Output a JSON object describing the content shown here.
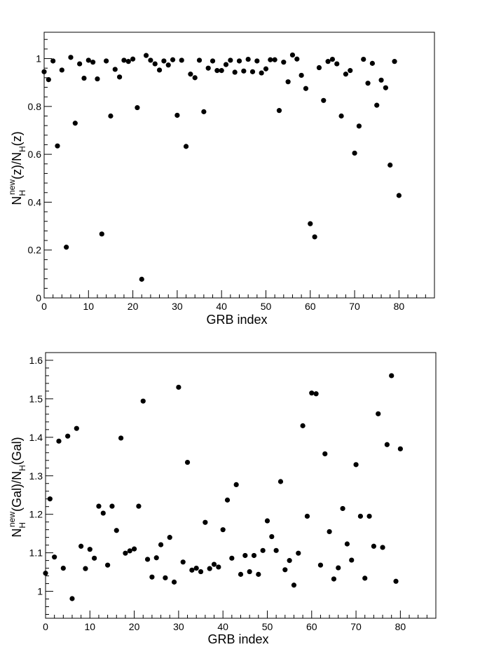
{
  "chart_data": [
    {
      "type": "scatter",
      "xlabel": "GRB index",
      "ylabel": {
        "base": "N",
        "sub1": "H",
        "sup": "new",
        "mid": "(z)/N",
        "sub2": "H",
        "tail": "(z)"
      },
      "xlim": [
        0,
        88
      ],
      "ylim": [
        0,
        1.11
      ],
      "xticks": [
        0,
        10,
        20,
        30,
        40,
        50,
        60,
        70,
        80
      ],
      "xtick_labels": [
        "0",
        "10",
        "20",
        "30",
        "40",
        "50",
        "60",
        "70",
        "80"
      ],
      "yticks": [
        0,
        0.2,
        0.4,
        0.6,
        0.8,
        1
      ],
      "ytick_labels": [
        "0",
        "0.2",
        "0.4",
        "0.6",
        "0.8",
        "1"
      ],
      "grid": false,
      "x": [
        0,
        1,
        2,
        3,
        4,
        5,
        6,
        7,
        8,
        9,
        10,
        11,
        12,
        13,
        14,
        15,
        16,
        17,
        18,
        19,
        20,
        21,
        22,
        23,
        24,
        25,
        26,
        27,
        28,
        29,
        30,
        31,
        32,
        33,
        34,
        35,
        36,
        37,
        38,
        39,
        40,
        41,
        42,
        43,
        44,
        45,
        46,
        47,
        48,
        49,
        50,
        51,
        52,
        53,
        54,
        55,
        56,
        57,
        58,
        59,
        60,
        61,
        62,
        63,
        64,
        65,
        66,
        67,
        68,
        69,
        70,
        71,
        72,
        73,
        74,
        75,
        76,
        77,
        78,
        79,
        80
      ],
      "y": [
        0.945,
        0.912,
        0.99,
        0.635,
        0.952,
        0.212,
        1.005,
        0.73,
        0.978,
        0.918,
        0.993,
        0.985,
        0.915,
        0.267,
        0.99,
        0.76,
        0.955,
        0.923,
        0.993,
        0.988,
        0.998,
        0.795,
        0.078,
        1.013,
        0.993,
        0.978,
        0.952,
        0.99,
        0.973,
        0.995,
        0.763,
        0.993,
        0.633,
        0.935,
        0.92,
        0.993,
        0.778,
        0.96,
        0.99,
        0.95,
        0.95,
        0.975,
        0.993,
        0.943,
        0.99,
        0.948,
        0.997,
        0.945,
        0.99,
        0.94,
        0.957,
        0.995,
        0.995,
        0.783,
        0.985,
        0.903,
        1.015,
        0.998,
        0.93,
        0.875,
        0.31,
        0.255,
        0.962,
        0.825,
        0.988,
        0.997,
        0.978,
        0.76,
        0.935,
        0.95,
        0.605,
        0.718,
        0.997,
        0.897,
        0.98,
        0.805,
        0.91,
        0.878,
        0.555,
        0.988,
        0.428
      ]
    },
    {
      "type": "scatter",
      "xlabel": "GRB index",
      "ylabel": {
        "base": "N",
        "sub1": "H",
        "sup": "new",
        "mid": "(Gal)/N",
        "sub2": "H",
        "tail": "(Gal)"
      },
      "xlim": [
        0,
        88
      ],
      "ylim": [
        0.93,
        1.62
      ],
      "xticks": [
        0,
        10,
        20,
        30,
        40,
        50,
        60,
        70,
        80
      ],
      "xtick_labels": [
        "0",
        "10",
        "20",
        "30",
        "40",
        "50",
        "60",
        "70",
        "80"
      ],
      "yticks": [
        1,
        1.1,
        1.2,
        1.3,
        1.4,
        1.5,
        1.6
      ],
      "ytick_labels": [
        "1",
        "1.1",
        "1.2",
        "1.3",
        "1.4",
        "1.5",
        "1.6"
      ],
      "grid": false,
      "x": [
        0,
        1,
        2,
        3,
        4,
        5,
        6,
        7,
        8,
        9,
        10,
        11,
        12,
        13,
        14,
        15,
        16,
        17,
        18,
        19,
        20,
        21,
        22,
        23,
        24,
        25,
        26,
        27,
        28,
        29,
        30,
        31,
        32,
        33,
        34,
        35,
        36,
        37,
        38,
        39,
        40,
        41,
        42,
        43,
        44,
        45,
        46,
        47,
        48,
        49,
        50,
        51,
        52,
        53,
        54,
        55,
        56,
        57,
        58,
        59,
        60,
        61,
        62,
        63,
        64,
        65,
        66,
        67,
        68,
        69,
        70,
        71,
        72,
        73,
        74,
        75,
        76,
        77,
        78,
        79,
        80
      ],
      "y": [
        1.047,
        1.24,
        1.089,
        1.39,
        1.06,
        1.403,
        0.981,
        1.423,
        1.117,
        1.059,
        1.109,
        1.086,
        1.221,
        1.203,
        1.068,
        1.221,
        1.158,
        1.398,
        1.099,
        1.105,
        1.11,
        1.221,
        1.494,
        1.083,
        1.037,
        1.087,
        1.121,
        1.035,
        1.14,
        1.024,
        1.53,
        1.076,
        1.335,
        1.055,
        1.06,
        1.051,
        1.179,
        1.059,
        1.07,
        1.063,
        1.16,
        1.237,
        1.086,
        1.277,
        1.044,
        1.093,
        1.051,
        1.093,
        1.044,
        1.106,
        1.183,
        1.142,
        1.106,
        1.285,
        1.056,
        1.08,
        1.016,
        1.099,
        1.43,
        1.195,
        1.515,
        1.513,
        1.068,
        1.357,
        1.155,
        1.032,
        1.061,
        1.215,
        1.123,
        1.081,
        1.329,
        1.195,
        1.034,
        1.195,
        1.117,
        1.461,
        1.114,
        1.381,
        1.56,
        1.026,
        1.37
      ]
    }
  ]
}
